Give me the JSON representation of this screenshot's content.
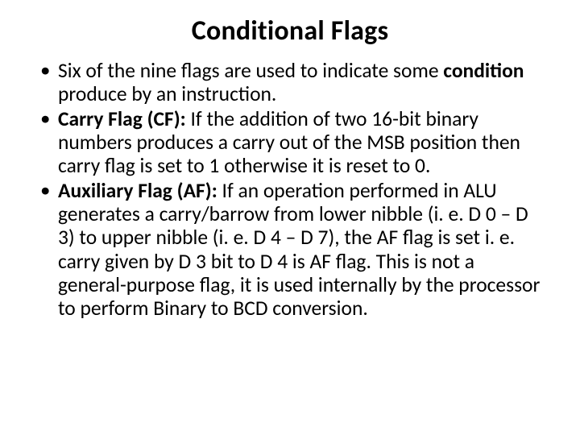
{
  "title": "Conditional Flags",
  "bullets": [
    {
      "pre": "Six of the nine flags are used to indicate some ",
      "bold": "condition",
      "post": " produce by an instruction."
    },
    {
      "bold": "Carry Flag (CF):",
      "post": "  If the addition of two 16-bit binary numbers produces a carry out of the MSB position then carry flag is set to 1 otherwise it is reset to 0."
    },
    {
      "bold": "Auxiliary Flag (AF):",
      "post": " If an operation performed in ALU generates a carry/barrow from lower nibble (i. e. D 0 – D 3) to upper nibble (i. e. D 4 – D 7), the AF flag is set i. e. carry given by D 3 bit to D 4 is AF flag. This is not a general-purpose flag, it is used internally by the processor to perform Binary to BCD conversion."
    }
  ]
}
